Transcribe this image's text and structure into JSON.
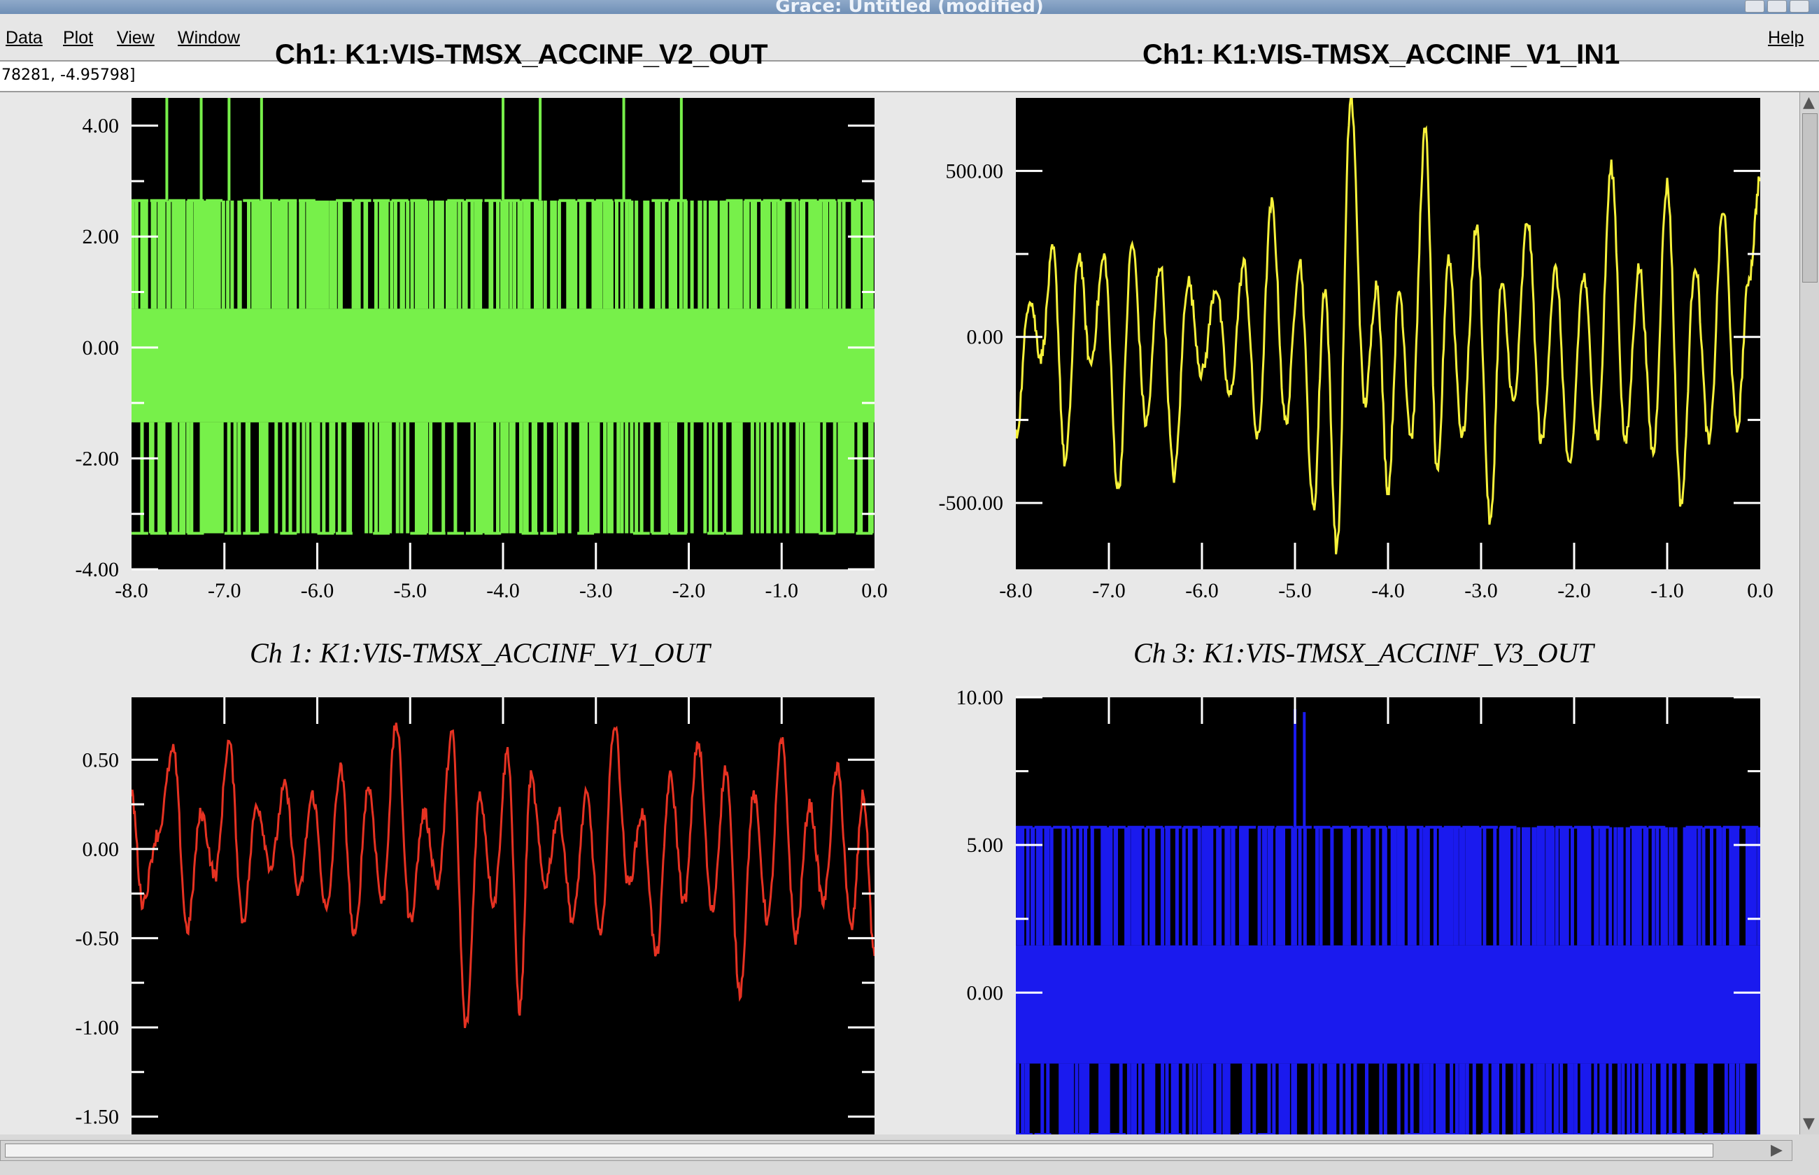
{
  "window": {
    "title": "Grace: Untitled (modified)"
  },
  "menubar": {
    "items": [
      {
        "label": "Data",
        "name": "menu-data"
      },
      {
        "label": "Plot",
        "name": "menu-plot"
      },
      {
        "label": "View",
        "name": "menu-view"
      },
      {
        "label": "Window",
        "name": "menu-window"
      }
    ],
    "help": "Help"
  },
  "locator": {
    "text": "78281, -4.95798]"
  },
  "titles": {
    "top_left": "Ch1: K1:VIS-TMSX_ACCINF_V2_OUT",
    "top_right": "Ch1: K1:VIS-TMSX_ACCINF_V1_IN1",
    "bottom_left": "Ch 1:  K1:VIS-TMSX_ACCINF_V1_OUT",
    "bottom_right": "Ch 3:  K1:VIS-TMSX_ACCINF_V3_OUT"
  },
  "colors": {
    "plot_bg": "#000000",
    "green": "#77f04a",
    "yellow": "#f6f13a",
    "red": "#e63222",
    "blue": "#1a1aee"
  },
  "chart_data": [
    {
      "type": "line",
      "color": "#77f04a",
      "xlim": [
        -8.0,
        0.0
      ],
      "ylim": [
        -4.0,
        4.5
      ],
      "xticks": [
        "-8.0",
        "-7.0",
        "-6.0",
        "-5.0",
        "-4.0",
        "-3.0",
        "-2.0",
        "-1.0",
        "0.0"
      ],
      "yticks": [
        {
          "v": 4.0,
          "t": "4.00"
        },
        {
          "v": 2.0,
          "t": "2.00"
        },
        {
          "v": 0.0,
          "t": "0.00"
        },
        {
          "v": -2.0,
          "t": "-2.00"
        },
        {
          "v": -4.0,
          "t": "-4.00"
        }
      ],
      "levels": {
        "top": 2.65,
        "hi": 0.7,
        "lo": -1.35,
        "bottom": -3.35
      }
    },
    {
      "type": "line",
      "color": "#f6f13a",
      "xlim": [
        -8.0,
        0.0
      ],
      "ylim": [
        -700,
        720
      ],
      "xticks": [
        "-8.0",
        "-7.0",
        "-6.0",
        "-5.0",
        "-4.0",
        "-3.0",
        "-2.0",
        "-1.0",
        "0.0"
      ],
      "yticks": [
        {
          "v": 500,
          "t": "500.00"
        },
        {
          "v": 0,
          "t": "0.00"
        },
        {
          "v": -500,
          "t": "-500.00"
        }
      ],
      "points": [
        [
          -8.0,
          -300
        ],
        [
          -7.85,
          120
        ],
        [
          -7.73,
          -60
        ],
        [
          -7.6,
          260
        ],
        [
          -7.47,
          -380
        ],
        [
          -7.32,
          250
        ],
        [
          -7.2,
          -80
        ],
        [
          -7.05,
          240
        ],
        [
          -6.9,
          -460
        ],
        [
          -6.75,
          280
        ],
        [
          -6.6,
          -260
        ],
        [
          -6.45,
          220
        ],
        [
          -6.3,
          -420
        ],
        [
          -6.15,
          170
        ],
        [
          -6.0,
          -110
        ],
        [
          -5.85,
          150
        ],
        [
          -5.7,
          -180
        ],
        [
          -5.55,
          220
        ],
        [
          -5.4,
          -310
        ],
        [
          -5.25,
          400
        ],
        [
          -5.1,
          -260
        ],
        [
          -4.95,
          230
        ],
        [
          -4.8,
          -520
        ],
        [
          -4.68,
          150
        ],
        [
          -4.55,
          -640
        ],
        [
          -4.4,
          720
        ],
        [
          -4.25,
          -200
        ],
        [
          -4.12,
          160
        ],
        [
          -4.0,
          -460
        ],
        [
          -3.88,
          140
        ],
        [
          -3.75,
          -300
        ],
        [
          -3.6,
          620
        ],
        [
          -3.47,
          -420
        ],
        [
          -3.35,
          240
        ],
        [
          -3.2,
          -300
        ],
        [
          -3.05,
          330
        ],
        [
          -2.9,
          -560
        ],
        [
          -2.78,
          160
        ],
        [
          -2.65,
          -200
        ],
        [
          -2.5,
          350
        ],
        [
          -2.35,
          -320
        ],
        [
          -2.2,
          200
        ],
        [
          -2.05,
          -400
        ],
        [
          -1.9,
          180
        ],
        [
          -1.75,
          -300
        ],
        [
          -1.6,
          510
        ],
        [
          -1.45,
          -320
        ],
        [
          -1.3,
          210
        ],
        [
          -1.15,
          -350
        ],
        [
          -1.0,
          460
        ],
        [
          -0.85,
          -500
        ],
        [
          -0.7,
          220
        ],
        [
          -0.55,
          -320
        ],
        [
          -0.4,
          380
        ],
        [
          -0.25,
          -280
        ],
        [
          -0.12,
          180
        ],
        [
          0.0,
          480
        ]
      ]
    },
    {
      "type": "line",
      "color": "#e63222",
      "xlim": [
        -8.0,
        0.0
      ],
      "ylim": [
        -1.6,
        0.85
      ],
      "xticks": [],
      "yticks": [
        {
          "v": 0.5,
          "t": "0.50"
        },
        {
          "v": 0.0,
          "t": "0.00"
        },
        {
          "v": -0.5,
          "t": "-0.50"
        },
        {
          "v": -1.0,
          "t": "-1.00"
        },
        {
          "v": -1.5,
          "t": "-1.50"
        }
      ],
      "points": [
        [
          -8.0,
          0.3
        ],
        [
          -7.88,
          -0.3
        ],
        [
          -7.72,
          0.08
        ],
        [
          -7.55,
          0.55
        ],
        [
          -7.4,
          -0.45
        ],
        [
          -7.25,
          0.2
        ],
        [
          -7.1,
          -0.15
        ],
        [
          -6.95,
          0.6
        ],
        [
          -6.8,
          -0.4
        ],
        [
          -6.65,
          0.25
        ],
        [
          -6.5,
          -0.1
        ],
        [
          -6.35,
          0.35
        ],
        [
          -6.2,
          -0.25
        ],
        [
          -6.05,
          0.3
        ],
        [
          -5.9,
          -0.35
        ],
        [
          -5.75,
          0.45
        ],
        [
          -5.6,
          -0.5
        ],
        [
          -5.45,
          0.35
        ],
        [
          -5.3,
          -0.3
        ],
        [
          -5.15,
          0.7
        ],
        [
          -5.0,
          -0.4
        ],
        [
          -4.85,
          0.2
        ],
        [
          -4.7,
          -0.2
        ],
        [
          -4.55,
          0.65
        ],
        [
          -4.4,
          -1.0
        ],
        [
          -4.25,
          0.3
        ],
        [
          -4.1,
          -0.3
        ],
        [
          -3.95,
          0.55
        ],
        [
          -3.82,
          -0.9
        ],
        [
          -3.7,
          0.4
        ],
        [
          -3.55,
          -0.2
        ],
        [
          -3.4,
          0.2
        ],
        [
          -3.25,
          -0.4
        ],
        [
          -3.1,
          0.3
        ],
        [
          -2.95,
          -0.5
        ],
        [
          -2.8,
          0.7
        ],
        [
          -2.65,
          -0.2
        ],
        [
          -2.5,
          0.2
        ],
        [
          -2.35,
          -0.6
        ],
        [
          -2.2,
          0.4
        ],
        [
          -2.05,
          -0.3
        ],
        [
          -1.9,
          0.6
        ],
        [
          -1.75,
          -0.35
        ],
        [
          -1.6,
          0.45
        ],
        [
          -1.45,
          -0.8
        ],
        [
          -1.3,
          0.3
        ],
        [
          -1.15,
          -0.4
        ],
        [
          -1.0,
          0.6
        ],
        [
          -0.85,
          -0.5
        ],
        [
          -0.7,
          0.25
        ],
        [
          -0.55,
          -0.3
        ],
        [
          -0.4,
          0.45
        ],
        [
          -0.25,
          -0.45
        ],
        [
          -0.12,
          0.3
        ],
        [
          0.0,
          -0.6
        ]
      ]
    },
    {
      "type": "line",
      "color": "#1a1aee",
      "xlim": [
        -8.0,
        0.0
      ],
      "ylim": [
        -4.8,
        10.0
      ],
      "xticks": [],
      "yticks": [
        {
          "v": 10.0,
          "t": "10.00"
        },
        {
          "v": 5.0,
          "t": "5.00"
        },
        {
          "v": 0.0,
          "t": "0.00"
        }
      ],
      "levels": {
        "top": 5.6,
        "hi": 1.6,
        "lo": -2.4,
        "bottom": -4.8
      },
      "spikes": [
        [
          -5.0,
          9.6
        ],
        [
          -4.9,
          9.5
        ]
      ]
    }
  ]
}
